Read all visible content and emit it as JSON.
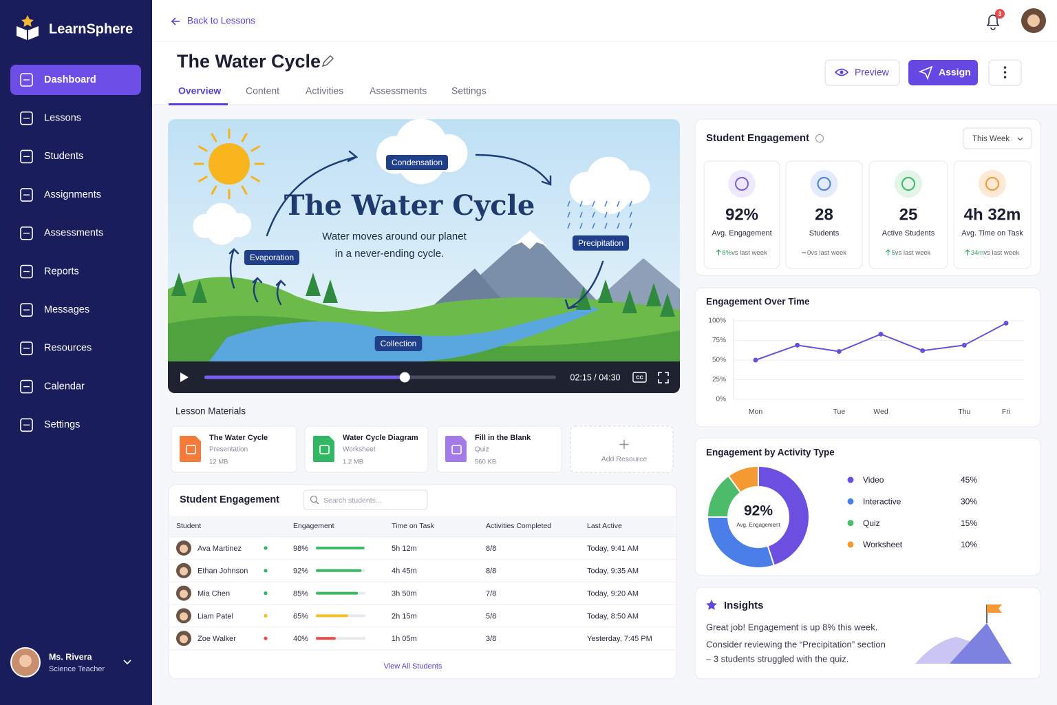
{
  "sidebar": {
    "brand": "LearnSphere",
    "nav": [
      "Dashboard",
      "Lessons",
      "Students",
      "Assignments",
      "Assessments",
      "Reports",
      "Messages",
      "Resources",
      "Calendar",
      "Settings"
    ],
    "active": 0,
    "user": {
      "name": "Ms. Rivera",
      "role": "Science Teacher"
    }
  },
  "topbar": {
    "back": "Back to Lessons",
    "notification_count": 3
  },
  "lesson": {
    "title": "The Water Cycle",
    "tabs": [
      "Overview",
      "Content",
      "Activities",
      "Assessments",
      "Settings"
    ],
    "active_tab": 0,
    "actions": {
      "preview": "Preview",
      "assign": "Assign"
    }
  },
  "video": {
    "title": "The Water Cycle",
    "caption": [
      "Water moves around our planet",
      "in a never-ending cycle."
    ],
    "stages": {
      "condensation": "Condensation",
      "precipitation": "Precipitation",
      "evaporation": "Evaporation",
      "collection": "Collection"
    },
    "time": "02:15 / 04:30",
    "cc": "CC",
    "progress": 57
  },
  "materials": {
    "title": "Lesson Materials",
    "items": [
      {
        "name": "The Water Cycle",
        "kind": "Presentation",
        "size": "12 MB",
        "color": "#f47b3a"
      },
      {
        "name": "Water Cycle Diagram",
        "kind": "Worksheet",
        "size": "1.2 MB",
        "color": "#34b765"
      },
      {
        "name": "Fill in the Blank",
        "kind": "Quiz",
        "size": "560 KB",
        "color": "#a27be8"
      }
    ],
    "add": "Add Resource"
  },
  "students": {
    "title": "Student Engagement",
    "search": "Search students...",
    "columns": [
      "Student",
      "Engagement",
      "Time on Task",
      "Activities Completed",
      "Last Active"
    ],
    "rows": [
      {
        "name": "Ava Martinez",
        "status": "#2fb36b",
        "engagement": 98,
        "engagement_label": "98%",
        "bar_color": "#3cb964",
        "time": "5h 12m",
        "activities": "8/8",
        "last_active": "Today, 9:41 AM"
      },
      {
        "name": "Ethan Johnson",
        "status": "#2fb36b",
        "engagement": 92,
        "engagement_label": "92%",
        "bar_color": "#3cb964",
        "time": "4h 45m",
        "activities": "8/8",
        "last_active": "Today, 9:35 AM"
      },
      {
        "name": "Mia Chen",
        "status": "#2fb36b",
        "engagement": 85,
        "engagement_label": "85%",
        "bar_color": "#3cb964",
        "time": "3h 50m",
        "activities": "7/8",
        "last_active": "Today, 9:20 AM"
      },
      {
        "name": "Liam Patel",
        "status": "#f4c025",
        "engagement": 65,
        "engagement_label": "65%",
        "bar_color": "#f4c025",
        "time": "2h 15m",
        "activities": "5/8",
        "last_active": "Today, 8:50 AM"
      },
      {
        "name": "Zoe Walker",
        "status": "#e84a4a",
        "engagement": 40,
        "engagement_label": "40%",
        "bar_color": "#e84a4a",
        "time": "1h 05m",
        "activities": "3/8",
        "last_active": "Yesterday, 7:45 PM"
      }
    ],
    "view_all": "View All Students"
  },
  "summary": {
    "title": "Student Engagement",
    "period": "This Week",
    "cards": [
      {
        "value": "92%",
        "label": "Avg. Engagement",
        "change": "8%",
        "change_note": "vs last week",
        "trend": "up",
        "color": "#7b5ce6",
        "bg": "#eee9fd"
      },
      {
        "value": "28",
        "label": "Students",
        "change": "0",
        "change_note": "vs last week",
        "trend": "flat",
        "color": "#4a7fe8",
        "bg": "#e4ebfd"
      },
      {
        "value": "25",
        "label": "Active Students",
        "change": "5",
        "change_note": "vs last week",
        "trend": "up",
        "color": "#3cb964",
        "bg": "#e2f5e8"
      },
      {
        "value": "4h 32m",
        "label": "Avg. Time on Task",
        "change": "34m",
        "change_note": "vs last week",
        "trend": "up",
        "color": "#f59a32",
        "bg": "#fde9d6"
      }
    ]
  },
  "chart_data": [
    {
      "type": "line",
      "title": "Engagement Over Time",
      "categories": [
        "Mon",
        null,
        "Tue",
        "Wed",
        null,
        "Thu",
        "Fri"
      ],
      "series": [
        {
          "name": "Engagement",
          "color": "#6a4fd8",
          "values": [
            50,
            69,
            61,
            83,
            62,
            69,
            97
          ]
        }
      ],
      "ylim": [
        0,
        100
      ],
      "yticks": [
        {
          "value": 0,
          "label": "0%"
        },
        {
          "value": 25,
          "label": "25%"
        },
        {
          "value": 50,
          "label": "50%"
        },
        {
          "value": 75,
          "label": "75%"
        },
        {
          "value": 100,
          "label": "100%"
        }
      ],
      "grid": true
    },
    {
      "type": "pie",
      "title": "Engagement by Activity Type",
      "categories": [
        "Video",
        "Interactive",
        "Quiz",
        "Worksheet"
      ],
      "values": [
        45,
        30,
        15,
        10
      ],
      "value_labels": [
        "45%",
        "30%",
        "15%",
        "10%"
      ],
      "colors": [
        "#6c4fe0",
        "#4a7fe8",
        "#4cbb6a",
        "#f59a32"
      ],
      "center_value": "92%",
      "center_label": "Avg. Engagement"
    }
  ],
  "insights": {
    "title": "Insights",
    "lines": [
      "Great job! Engagement is up 8% this week.",
      "Consider reviewing the “Precipitation” section",
      "– 3 students struggled with the quiz."
    ]
  }
}
